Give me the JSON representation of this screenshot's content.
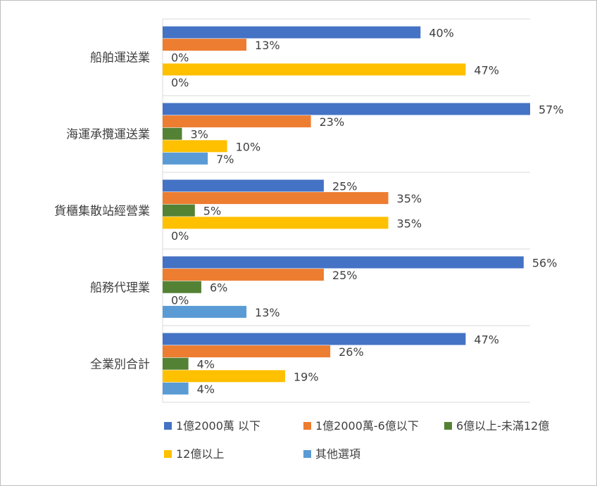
{
  "chart_data": {
    "type": "bar",
    "orientation": "horizontal",
    "categories": [
      "船舶運送業",
      "海運承攬運送業",
      "貨櫃集散站經營業",
      "船務代理業",
      "全業別合計"
    ],
    "series": [
      {
        "name": "1億2000萬 以下",
        "color": "#4472c4",
        "values": [
          40,
          57,
          25,
          56,
          47
        ],
        "labels": [
          "40%",
          "57%",
          "25%",
          "56%",
          "47%"
        ]
      },
      {
        "name": "1億2000萬-6億以下",
        "color": "#ed7d31",
        "values": [
          13,
          23,
          35,
          25,
          26
        ],
        "labels": [
          "13%",
          "23%",
          "35%",
          "25%",
          "26%"
        ]
      },
      {
        "name": "6億以上-未滿12億",
        "color": "#548235",
        "values": [
          0,
          3,
          5,
          6,
          4
        ],
        "labels": [
          "0%",
          "3%",
          "5%",
          "6%",
          "4%"
        ]
      },
      {
        "name": "12億以上",
        "color": "#ffc000",
        "values": [
          47,
          10,
          35,
          0,
          19
        ],
        "labels": [
          "47%",
          "10%",
          "35%",
          "0%",
          "19%"
        ]
      },
      {
        "name": "其他選項",
        "color": "#5b9bd5",
        "values": [
          0,
          7,
          0,
          13,
          4
        ],
        "labels": [
          "0%",
          "7%",
          "0%",
          "13%",
          "4%"
        ]
      }
    ],
    "xlim": [
      0,
      57
    ],
    "value_unit": "%",
    "legend_position": "bottom",
    "grid": false
  }
}
